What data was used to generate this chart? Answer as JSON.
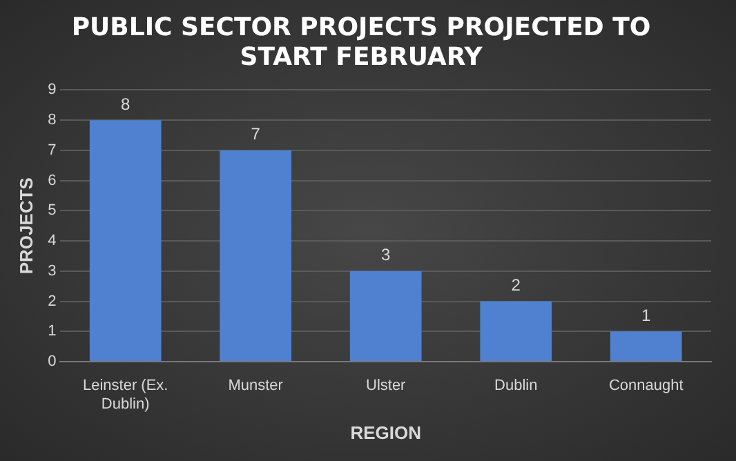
{
  "chart_data": {
    "type": "bar",
    "title": "PUBLIC SECTOR PROJECTS PROJECTED TO START FEBRUARY",
    "xlabel": "REGION",
    "ylabel": "PROJECTS",
    "categories": [
      "Leinster (Ex. Dublin)",
      "Munster",
      "Ulster",
      "Dublin",
      "Connaught"
    ],
    "values": [
      8,
      7,
      3,
      2,
      1
    ],
    "color": "#4f81d0",
    "ylim": [
      0,
      9
    ],
    "yticks": [
      0,
      1,
      2,
      3,
      4,
      5,
      6,
      7,
      8,
      9
    ],
    "grid": "y",
    "data_labels": true
  }
}
